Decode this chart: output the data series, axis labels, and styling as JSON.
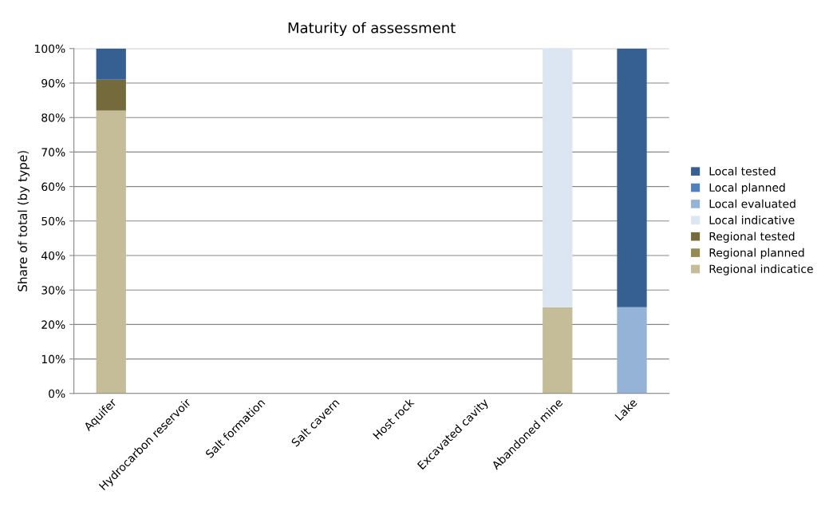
{
  "chart_data": {
    "type": "bar",
    "stacked": true,
    "title": "Maturity of assessment",
    "ylabel": "Share of total (by type)",
    "categories": [
      "Aquifer",
      "Hydrocarbon reservoir",
      "Salt formation",
      "Salt cavern",
      "Host rock",
      "Excavated cavity",
      "Abandoned mine",
      "Lake"
    ],
    "series": [
      {
        "name": "Regional indicatice",
        "color": "#c4bd97",
        "values": [
          82,
          0,
          0,
          0,
          0,
          0,
          25,
          0
        ]
      },
      {
        "name": "Regional planned",
        "color": "#948a54",
        "values": [
          0,
          0,
          0,
          0,
          0,
          0,
          0,
          0
        ]
      },
      {
        "name": "Regional tested",
        "color": "#746a3c",
        "values": [
          9,
          0,
          0,
          0,
          0,
          0,
          0,
          0
        ]
      },
      {
        "name": "Local indicative",
        "color": "#dce6f2",
        "values": [
          0,
          0,
          0,
          0,
          0,
          0,
          75,
          0
        ]
      },
      {
        "name": "Local evaluated",
        "color": "#95b3d7",
        "values": [
          0,
          0,
          0,
          0,
          0,
          0,
          0,
          25
        ]
      },
      {
        "name": "Local planned",
        "color": "#4f81bd",
        "values": [
          0,
          0,
          0,
          0,
          0,
          0,
          0,
          0
        ]
      },
      {
        "name": "Local tested",
        "color": "#376092",
        "values": [
          9,
          0,
          0,
          0,
          0,
          0,
          0,
          75
        ]
      }
    ],
    "ylim": [
      0,
      100
    ],
    "yticks": [
      {
        "value": 0,
        "label": "0%"
      },
      {
        "value": 10,
        "label": "10%"
      },
      {
        "value": 20,
        "label": "20%"
      },
      {
        "value": 30,
        "label": "30%"
      },
      {
        "value": 40,
        "label": "40%"
      },
      {
        "value": 50,
        "label": "50%"
      },
      {
        "value": 60,
        "label": "60%"
      },
      {
        "value": 70,
        "label": "70%"
      },
      {
        "value": 80,
        "label": "80%"
      },
      {
        "value": 90,
        "label": "90%"
      },
      {
        "value": 100,
        "label": "100%"
      }
    ],
    "grid": "y",
    "legend": "right"
  }
}
